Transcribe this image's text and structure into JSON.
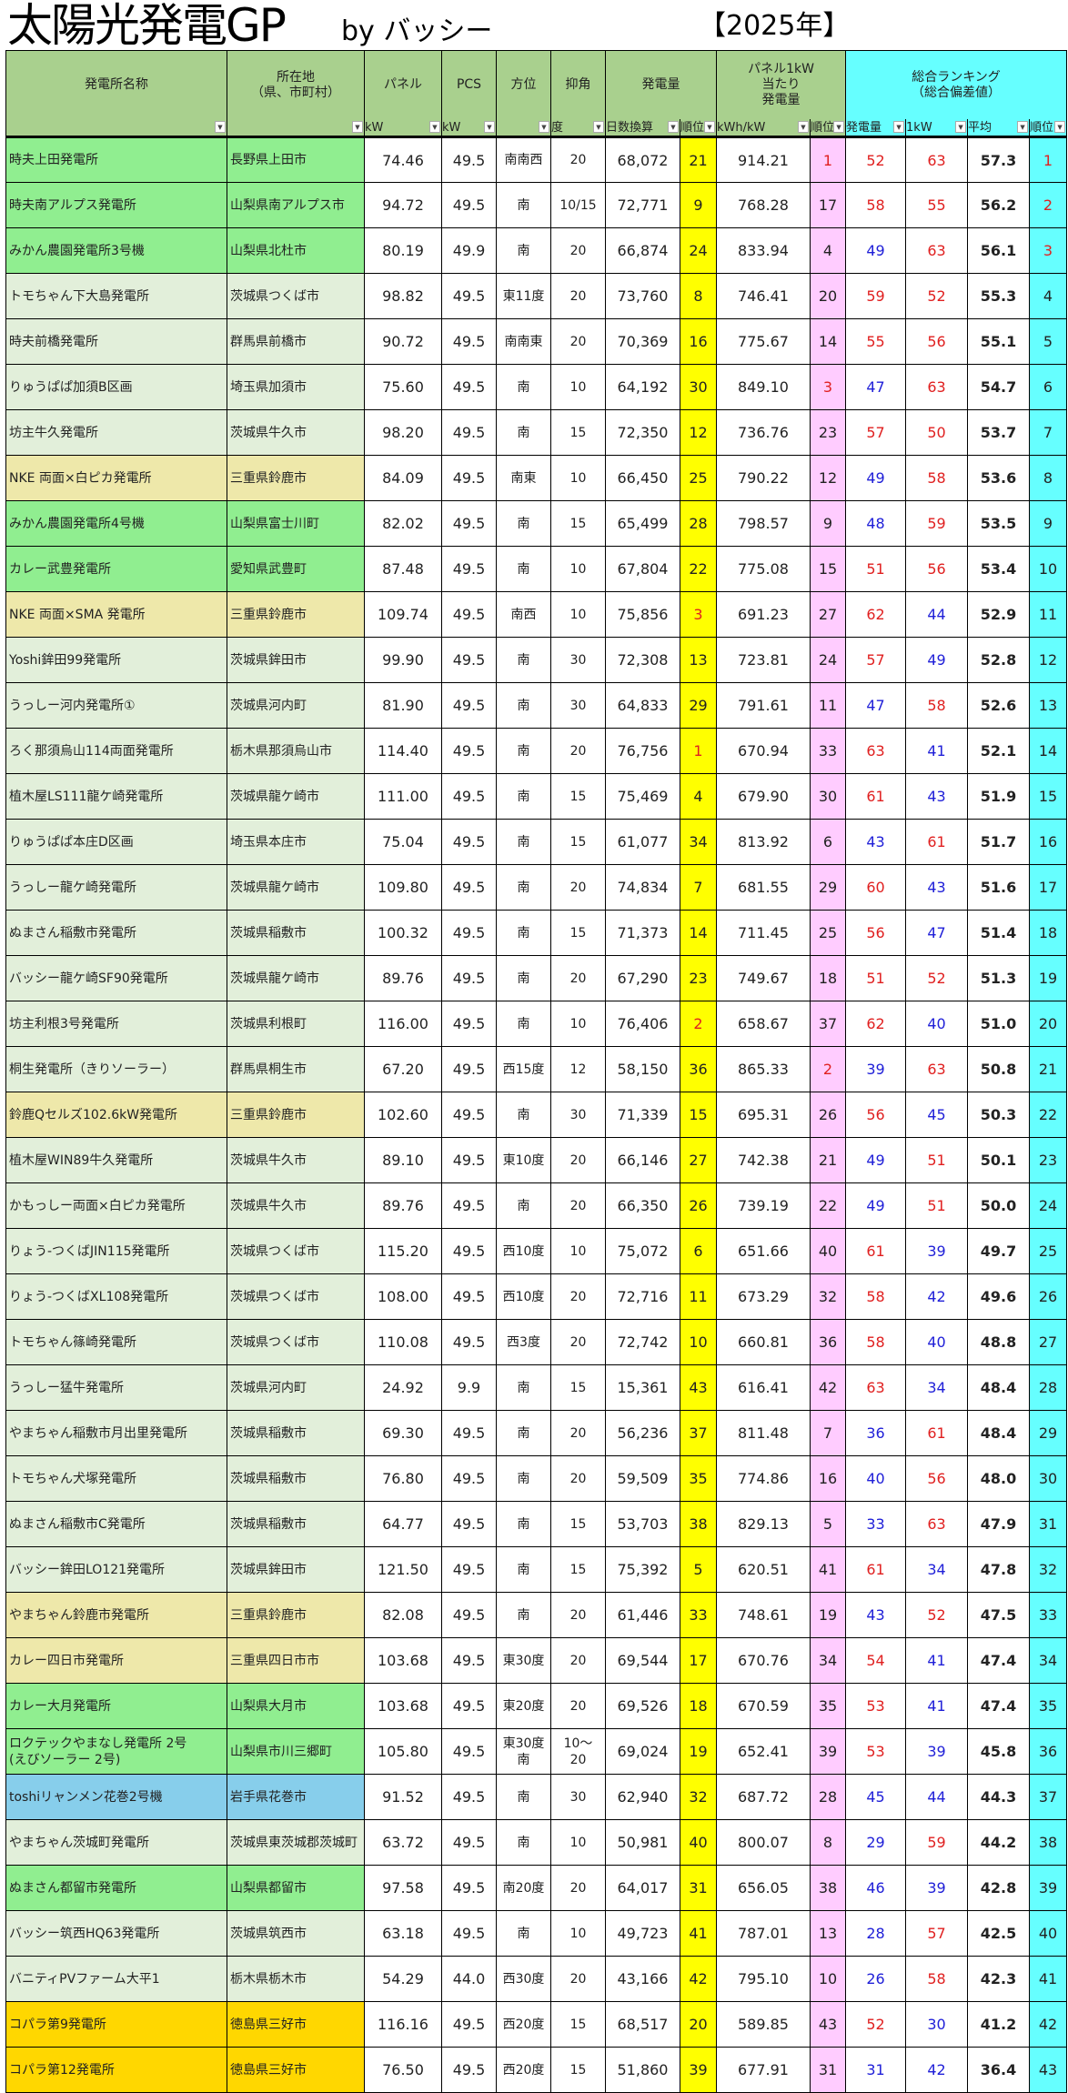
{
  "title": "太陽光発電GP",
  "byline": "by バッシー",
  "year": "【2025年】",
  "colors": {
    "green": "#90ee90",
    "pale": "#e2efda",
    "khaki": "#eee8aa",
    "blue": "#87ceeb",
    "gold": "#ffd700",
    "header": "#a9d08e",
    "ranking_header": "#66ffff",
    "gen_rank": "#ffff00",
    "per_kw_rank": "#ffccff",
    "high": "#e02020",
    "low": "#2020d8"
  },
  "headers": {
    "name": "発電所名称",
    "location": "所在地\n（県、市町村）",
    "panel": "パネル",
    "pcs": "PCS",
    "direction": "方位",
    "tilt": "抑角",
    "generation": "発電量",
    "per_kw": "パネル1kW\n当たり\n発電量",
    "ranking": "総合ランキング\n（総合偏差値）"
  },
  "subheaders": {
    "panel_unit": "kW",
    "pcs_unit": "kW",
    "tilt_unit": "度",
    "gen_unit": "日数換算",
    "gen_rank": "順位",
    "per_kw_unit": "kWh/kW",
    "per_kw_rank": "順位",
    "score_gen": "発電量",
    "score_kw": "1kW",
    "average": "平均",
    "rank": "順位"
  },
  "rows": [
    {
      "name": "時夫上田発電所",
      "location": "長野県上田市",
      "panel": "74.46",
      "pcs": "49.5",
      "direction": "南南西",
      "tilt": "20",
      "generation": "68,072",
      "gen_rank": 21,
      "per_kw": "914.21",
      "per_kw_rank": 1,
      "score_gen": 52,
      "score_kw": 63,
      "average": "57.3",
      "rank": 1,
      "group": "green"
    },
    {
      "name": "時夫南アルプス発電所",
      "location": "山梨県南アルプス市",
      "panel": "94.72",
      "pcs": "49.5",
      "direction": "南",
      "tilt": "10/15",
      "generation": "72,771",
      "gen_rank": 9,
      "per_kw": "768.28",
      "per_kw_rank": 17,
      "score_gen": 58,
      "score_kw": 55,
      "average": "56.2",
      "rank": 2,
      "group": "green"
    },
    {
      "name": "みかん農園発電所3号機",
      "location": "山梨県北杜市",
      "panel": "80.19",
      "pcs": "49.9",
      "direction": "南",
      "tilt": "20",
      "generation": "66,874",
      "gen_rank": 24,
      "per_kw": "833.94",
      "per_kw_rank": 4,
      "score_gen": 49,
      "score_kw": 63,
      "average": "56.1",
      "rank": 3,
      "group": "green"
    },
    {
      "name": "トモちゃん下大島発電所",
      "location": "茨城県つくば市",
      "panel": "98.82",
      "pcs": "49.5",
      "direction": "東11度",
      "tilt": "20",
      "generation": "73,760",
      "gen_rank": 8,
      "per_kw": "746.41",
      "per_kw_rank": 20,
      "score_gen": 59,
      "score_kw": 52,
      "average": "55.3",
      "rank": 4,
      "group": "pale"
    },
    {
      "name": "時夫前橋発電所",
      "location": "群馬県前橋市",
      "panel": "90.72",
      "pcs": "49.5",
      "direction": "南南東",
      "tilt": "20",
      "generation": "70,369",
      "gen_rank": 16,
      "per_kw": "775.67",
      "per_kw_rank": 14,
      "score_gen": 55,
      "score_kw": 56,
      "average": "55.1",
      "rank": 5,
      "group": "pale"
    },
    {
      "name": "りゅうぱぱ加須B区画",
      "location": "埼玉県加須市",
      "panel": "75.60",
      "pcs": "49.5",
      "direction": "南",
      "tilt": "10",
      "generation": "64,192",
      "gen_rank": 30,
      "per_kw": "849.10",
      "per_kw_rank": 3,
      "score_gen": 47,
      "score_kw": 63,
      "average": "54.7",
      "rank": 6,
      "group": "pale"
    },
    {
      "name": "坊主牛久発電所",
      "location": "茨城県牛久市",
      "panel": "98.20",
      "pcs": "49.5",
      "direction": "南",
      "tilt": "15",
      "generation": "72,350",
      "gen_rank": 12,
      "per_kw": "736.76",
      "per_kw_rank": 23,
      "score_gen": 57,
      "score_kw": 50,
      "average": "53.7",
      "rank": 7,
      "group": "pale"
    },
    {
      "name": "NKE 両面×白ピカ発電所",
      "location": "三重県鈴鹿市",
      "panel": "84.09",
      "pcs": "49.5",
      "direction": "南東",
      "tilt": "10",
      "generation": "66,450",
      "gen_rank": 25,
      "per_kw": "790.22",
      "per_kw_rank": 12,
      "score_gen": 49,
      "score_kw": 58,
      "average": "53.6",
      "rank": 8,
      "group": "khaki"
    },
    {
      "name": "みかん農園発電所4号機",
      "location": "山梨県富士川町",
      "panel": "82.02",
      "pcs": "49.5",
      "direction": "南",
      "tilt": "15",
      "generation": "65,499",
      "gen_rank": 28,
      "per_kw": "798.57",
      "per_kw_rank": 9,
      "score_gen": 48,
      "score_kw": 59,
      "average": "53.5",
      "rank": 9,
      "group": "green"
    },
    {
      "name": "カレー武豊発電所",
      "location": "愛知県武豊町",
      "panel": "87.48",
      "pcs": "49.5",
      "direction": "南",
      "tilt": "10",
      "generation": "67,804",
      "gen_rank": 22,
      "per_kw": "775.08",
      "per_kw_rank": 15,
      "score_gen": 51,
      "score_kw": 56,
      "average": "53.4",
      "rank": 10,
      "group": "green"
    },
    {
      "name": "NKE 両面×SMA 発電所",
      "location": "三重県鈴鹿市",
      "panel": "109.74",
      "pcs": "49.5",
      "direction": "南西",
      "tilt": "10",
      "generation": "75,856",
      "gen_rank": 3,
      "per_kw": "691.23",
      "per_kw_rank": 27,
      "score_gen": 62,
      "score_kw": 44,
      "average": "52.9",
      "rank": 11,
      "group": "khaki"
    },
    {
      "name": "Yoshi鉾田99発電所",
      "location": "茨城県鉾田市",
      "panel": "99.90",
      "pcs": "49.5",
      "direction": "南",
      "tilt": "30",
      "generation": "72,308",
      "gen_rank": 13,
      "per_kw": "723.81",
      "per_kw_rank": 24,
      "score_gen": 57,
      "score_kw": 49,
      "average": "52.8",
      "rank": 12,
      "group": "pale"
    },
    {
      "name": "うっしー河内発電所①",
      "location": "茨城県河内町",
      "panel": "81.90",
      "pcs": "49.5",
      "direction": "南",
      "tilt": "30",
      "generation": "64,833",
      "gen_rank": 29,
      "per_kw": "791.61",
      "per_kw_rank": 11,
      "score_gen": 47,
      "score_kw": 58,
      "average": "52.6",
      "rank": 13,
      "group": "pale"
    },
    {
      "name": "ろく那須烏山114両面発電所",
      "location": "栃木県那須烏山市",
      "panel": "114.40",
      "pcs": "49.5",
      "direction": "南",
      "tilt": "20",
      "generation": "76,756",
      "gen_rank": 1,
      "per_kw": "670.94",
      "per_kw_rank": 33,
      "score_gen": 63,
      "score_kw": 41,
      "average": "52.1",
      "rank": 14,
      "group": "pale"
    },
    {
      "name": "植木屋LS111龍ケ崎発電所",
      "location": "茨城県龍ケ崎市",
      "panel": "111.00",
      "pcs": "49.5",
      "direction": "南",
      "tilt": "15",
      "generation": "75,469",
      "gen_rank": 4,
      "per_kw": "679.90",
      "per_kw_rank": 30,
      "score_gen": 61,
      "score_kw": 43,
      "average": "51.9",
      "rank": 15,
      "group": "pale"
    },
    {
      "name": "りゅうぱぱ本庄D区画",
      "location": "埼玉県本庄市",
      "panel": "75.04",
      "pcs": "49.5",
      "direction": "南",
      "tilt": "15",
      "generation": "61,077",
      "gen_rank": 34,
      "per_kw": "813.92",
      "per_kw_rank": 6,
      "score_gen": 43,
      "score_kw": 61,
      "average": "51.7",
      "rank": 16,
      "group": "pale"
    },
    {
      "name": "うっしー龍ケ崎発電所",
      "location": "茨城県龍ケ崎市",
      "panel": "109.80",
      "pcs": "49.5",
      "direction": "南",
      "tilt": "20",
      "generation": "74,834",
      "gen_rank": 7,
      "per_kw": "681.55",
      "per_kw_rank": 29,
      "score_gen": 60,
      "score_kw": 43,
      "average": "51.6",
      "rank": 17,
      "group": "pale"
    },
    {
      "name": "ぬまさん稲敷市発電所",
      "location": "茨城県稲敷市",
      "panel": "100.32",
      "pcs": "49.5",
      "direction": "南",
      "tilt": "15",
      "generation": "71,373",
      "gen_rank": 14,
      "per_kw": "711.45",
      "per_kw_rank": 25,
      "score_gen": 56,
      "score_kw": 47,
      "average": "51.4",
      "rank": 18,
      "group": "pale"
    },
    {
      "name": "バッシー龍ケ崎SF90発電所",
      "location": "茨城県龍ケ崎市",
      "panel": "89.76",
      "pcs": "49.5",
      "direction": "南",
      "tilt": "20",
      "generation": "67,290",
      "gen_rank": 23,
      "per_kw": "749.67",
      "per_kw_rank": 18,
      "score_gen": 51,
      "score_kw": 52,
      "average": "51.3",
      "rank": 19,
      "group": "pale"
    },
    {
      "name": "坊主利根3号発電所",
      "location": "茨城県利根町",
      "panel": "116.00",
      "pcs": "49.5",
      "direction": "南",
      "tilt": "10",
      "generation": "76,406",
      "gen_rank": 2,
      "per_kw": "658.67",
      "per_kw_rank": 37,
      "score_gen": 62,
      "score_kw": 40,
      "average": "51.0",
      "rank": 20,
      "group": "pale"
    },
    {
      "name": "桐生発電所（きりソーラー）",
      "location": "群馬県桐生市",
      "panel": "67.20",
      "pcs": "49.5",
      "direction": "西15度",
      "tilt": "12",
      "generation": "58,150",
      "gen_rank": 36,
      "per_kw": "865.33",
      "per_kw_rank": 2,
      "score_gen": 39,
      "score_kw": 63,
      "average": "50.8",
      "rank": 21,
      "group": "pale"
    },
    {
      "name": "鈴鹿Qセルズ102.6kW発電所",
      "location": "三重県鈴鹿市",
      "panel": "102.60",
      "pcs": "49.5",
      "direction": "南",
      "tilt": "30",
      "generation": "71,339",
      "gen_rank": 15,
      "per_kw": "695.31",
      "per_kw_rank": 26,
      "score_gen": 56,
      "score_kw": 45,
      "average": "50.3",
      "rank": 22,
      "group": "khaki"
    },
    {
      "name": "植木屋WIN89牛久発電所",
      "location": "茨城県牛久市",
      "panel": "89.10",
      "pcs": "49.5",
      "direction": "東10度",
      "tilt": "20",
      "generation": "66,146",
      "gen_rank": 27,
      "per_kw": "742.38",
      "per_kw_rank": 21,
      "score_gen": 49,
      "score_kw": 51,
      "average": "50.1",
      "rank": 23,
      "group": "pale"
    },
    {
      "name": "かもっしー両面×白ピカ発電所",
      "location": "茨城県牛久市",
      "panel": "89.76",
      "pcs": "49.5",
      "direction": "南",
      "tilt": "20",
      "generation": "66,350",
      "gen_rank": 26,
      "per_kw": "739.19",
      "per_kw_rank": 22,
      "score_gen": 49,
      "score_kw": 51,
      "average": "50.0",
      "rank": 24,
      "group": "pale"
    },
    {
      "name": "りょう-つくばJIN115発電所",
      "location": "茨城県つくば市",
      "panel": "115.20",
      "pcs": "49.5",
      "direction": "西10度",
      "tilt": "10",
      "generation": "75,072",
      "gen_rank": 6,
      "per_kw": "651.66",
      "per_kw_rank": 40,
      "score_gen": 61,
      "score_kw": 39,
      "average": "49.7",
      "rank": 25,
      "group": "pale"
    },
    {
      "name": "りょう-つくばXL108発電所",
      "location": "茨城県つくば市",
      "panel": "108.00",
      "pcs": "49.5",
      "direction": "西10度",
      "tilt": "20",
      "generation": "72,716",
      "gen_rank": 11,
      "per_kw": "673.29",
      "per_kw_rank": 32,
      "score_gen": 58,
      "score_kw": 42,
      "average": "49.6",
      "rank": 26,
      "group": "pale"
    },
    {
      "name": "トモちゃん篠崎発電所",
      "location": "茨城県つくば市",
      "panel": "110.08",
      "pcs": "49.5",
      "direction": "西3度",
      "tilt": "20",
      "generation": "72,742",
      "gen_rank": 10,
      "per_kw": "660.81",
      "per_kw_rank": 36,
      "score_gen": 58,
      "score_kw": 40,
      "average": "48.8",
      "rank": 27,
      "group": "pale"
    },
    {
      "name": "うっしー猛牛発電所",
      "location": "茨城県河内町",
      "panel": "24.92",
      "pcs": "9.9",
      "direction": "南",
      "tilt": "15",
      "generation": "15,361",
      "gen_rank": 43,
      "per_kw": "616.41",
      "per_kw_rank": 42,
      "score_gen": 63,
      "score_kw": 34,
      "average": "48.4",
      "rank": 28,
      "group": "pale"
    },
    {
      "name": "やまちゃん稲敷市月出里発電所",
      "location": "茨城県稲敷市",
      "panel": "69.30",
      "pcs": "49.5",
      "direction": "南",
      "tilt": "20",
      "generation": "56,236",
      "gen_rank": 37,
      "per_kw": "811.48",
      "per_kw_rank": 7,
      "score_gen": 36,
      "score_kw": 61,
      "average": "48.4",
      "rank": 29,
      "group": "pale"
    },
    {
      "name": "トモちゃん犬塚発電所",
      "location": "茨城県稲敷市",
      "panel": "76.80",
      "pcs": "49.5",
      "direction": "南",
      "tilt": "20",
      "generation": "59,509",
      "gen_rank": 35,
      "per_kw": "774.86",
      "per_kw_rank": 16,
      "score_gen": 40,
      "score_kw": 56,
      "average": "48.0",
      "rank": 30,
      "group": "pale"
    },
    {
      "name": "ぬまさん稲敷市C発電所",
      "location": "茨城県稲敷市",
      "panel": "64.77",
      "pcs": "49.5",
      "direction": "南",
      "tilt": "15",
      "generation": "53,703",
      "gen_rank": 38,
      "per_kw": "829.13",
      "per_kw_rank": 5,
      "score_gen": 33,
      "score_kw": 63,
      "average": "47.9",
      "rank": 31,
      "group": "pale"
    },
    {
      "name": "バッシー鉾田LO121発電所",
      "location": "茨城県鉾田市",
      "panel": "121.50",
      "pcs": "49.5",
      "direction": "南",
      "tilt": "15",
      "generation": "75,392",
      "gen_rank": 5,
      "per_kw": "620.51",
      "per_kw_rank": 41,
      "score_gen": 61,
      "score_kw": 34,
      "average": "47.8",
      "rank": 32,
      "group": "pale"
    },
    {
      "name": "やまちゃん鈴鹿市発電所",
      "location": "三重県鈴鹿市",
      "panel": "82.08",
      "pcs": "49.5",
      "direction": "南",
      "tilt": "20",
      "generation": "61,446",
      "gen_rank": 33,
      "per_kw": "748.61",
      "per_kw_rank": 19,
      "score_gen": 43,
      "score_kw": 52,
      "average": "47.5",
      "rank": 33,
      "group": "khaki"
    },
    {
      "name": "カレー四日市発電所",
      "location": "三重県四日市市",
      "panel": "103.68",
      "pcs": "49.5",
      "direction": "東30度",
      "tilt": "20",
      "generation": "69,544",
      "gen_rank": 17,
      "per_kw": "670.76",
      "per_kw_rank": 34,
      "score_gen": 54,
      "score_kw": 41,
      "average": "47.4",
      "rank": 34,
      "group": "khaki"
    },
    {
      "name": "カレー大月発電所",
      "location": "山梨県大月市",
      "panel": "103.68",
      "pcs": "49.5",
      "direction": "東20度",
      "tilt": "20",
      "generation": "69,526",
      "gen_rank": 18,
      "per_kw": "670.59",
      "per_kw_rank": 35,
      "score_gen": 53,
      "score_kw": 41,
      "average": "47.4",
      "rank": 35,
      "group": "green"
    },
    {
      "name": "ロクテックやまなし発電所 2号\n(えびソーラー 2号)",
      "location": "山梨県市川三郷町",
      "panel": "105.80",
      "pcs": "49.5",
      "direction": "東30度\n南",
      "tilt": "10～\n20",
      "generation": "69,024",
      "gen_rank": 19,
      "per_kw": "652.41",
      "per_kw_rank": 39,
      "score_gen": 53,
      "score_kw": 39,
      "average": "45.8",
      "rank": 36,
      "group": "green"
    },
    {
      "name": "toshiリャンメン花巻2号機",
      "location": "岩手県花巻市",
      "panel": "91.52",
      "pcs": "49.5",
      "direction": "南",
      "tilt": "30",
      "generation": "62,940",
      "gen_rank": 32,
      "per_kw": "687.72",
      "per_kw_rank": 28,
      "score_gen": 45,
      "score_kw": 44,
      "average": "44.3",
      "rank": 37,
      "group": "blue"
    },
    {
      "name": "やまちゃん茨城町発電所",
      "location": "茨城県東茨城郡茨城町",
      "panel": "63.72",
      "pcs": "49.5",
      "direction": "南",
      "tilt": "10",
      "generation": "50,981",
      "gen_rank": 40,
      "per_kw": "800.07",
      "per_kw_rank": 8,
      "score_gen": 29,
      "score_kw": 59,
      "average": "44.2",
      "rank": 38,
      "group": "pale"
    },
    {
      "name": "ぬまさん都留市発電所",
      "location": "山梨県都留市",
      "panel": "97.58",
      "pcs": "49.5",
      "direction": "南20度",
      "tilt": "20",
      "generation": "64,017",
      "gen_rank": 31,
      "per_kw": "656.05",
      "per_kw_rank": 38,
      "score_gen": 46,
      "score_kw": 39,
      "average": "42.8",
      "rank": 39,
      "group": "green"
    },
    {
      "name": "バッシー筑西HQ63発電所",
      "location": "茨城県筑西市",
      "panel": "63.18",
      "pcs": "49.5",
      "direction": "南",
      "tilt": "10",
      "generation": "49,723",
      "gen_rank": 41,
      "per_kw": "787.01",
      "per_kw_rank": 13,
      "score_gen": 28,
      "score_kw": 57,
      "average": "42.5",
      "rank": 40,
      "group": "pale"
    },
    {
      "name": "バニティPVファーム大平1",
      "location": "栃木県栃木市",
      "panel": "54.29",
      "pcs": "44.0",
      "direction": "西30度",
      "tilt": "20",
      "generation": "43,166",
      "gen_rank": 42,
      "per_kw": "795.10",
      "per_kw_rank": 10,
      "score_gen": 26,
      "score_kw": 58,
      "average": "42.3",
      "rank": 41,
      "group": "pale"
    },
    {
      "name": "コパラ第9発電所",
      "location": "徳島県三好市",
      "panel": "116.16",
      "pcs": "49.5",
      "direction": "西20度",
      "tilt": "15",
      "generation": "68,517",
      "gen_rank": 20,
      "per_kw": "589.85",
      "per_kw_rank": 43,
      "score_gen": 52,
      "score_kw": 30,
      "average": "41.2",
      "rank": 42,
      "group": "gold"
    },
    {
      "name": "コパラ第12発電所",
      "location": "徳島県三好市",
      "panel": "76.50",
      "pcs": "49.5",
      "direction": "西20度",
      "tilt": "15",
      "generation": "51,860",
      "gen_rank": 39,
      "per_kw": "677.91",
      "per_kw_rank": 31,
      "score_gen": 31,
      "score_kw": 42,
      "average": "36.4",
      "rank": 43,
      "group": "gold"
    }
  ]
}
